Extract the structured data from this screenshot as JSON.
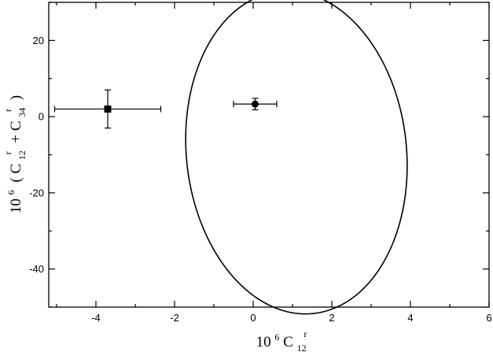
{
  "chart_data": {
    "type": "scatter",
    "title": "",
    "xlabel": {
      "base": "10",
      "power": "6",
      "symbol": "C",
      "subscript": "12",
      "superscript": "r"
    },
    "ylabel": {
      "base": "10",
      "power": "6",
      "open": "(",
      "first_symbol": "C",
      "first_subscript": "12",
      "first_superscript": "r",
      "plus": "+",
      "second_symbol": "C",
      "second_subscript": "34",
      "second_superscript": "r",
      "close": ")"
    },
    "xlim": [
      -5.2,
      6
    ],
    "ylim": [
      -50,
      30
    ],
    "xticks": [
      -4,
      -2,
      0,
      2,
      4,
      6
    ],
    "yticks": [
      -40,
      -20,
      0,
      20
    ],
    "xtick_labels": [
      "-4",
      "-2",
      "0",
      "2",
      "4",
      "6"
    ],
    "ytick_labels": [
      "-40",
      "-20",
      "0",
      "20"
    ],
    "grid": false,
    "series": [
      {
        "marker": "square",
        "points": [
          {
            "x": -3.7,
            "y": 2,
            "x_err": [
              1.35,
              1.35
            ],
            "y_err": [
              5,
              5
            ]
          }
        ]
      },
      {
        "marker": "circle",
        "points": [
          {
            "x": 0.05,
            "y": 3.3,
            "x_err": [
              0.55,
              0.55
            ],
            "y_err": [
              1.5,
              1.5
            ]
          }
        ]
      }
    ],
    "ellipse": {
      "center_x": 1.1,
      "center_y": -9.4,
      "semi_major": 42.5,
      "semi_minor": 2.8,
      "angle_deg": -84.46
    }
  }
}
